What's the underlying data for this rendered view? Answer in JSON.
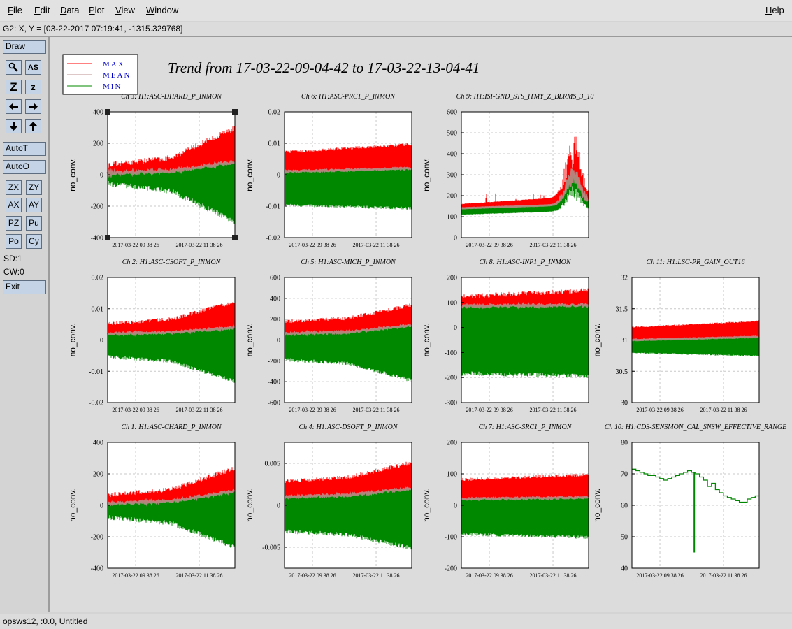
{
  "menu": {
    "items": [
      "File",
      "Edit",
      "Data",
      "Plot",
      "View",
      "Window"
    ],
    "help": "Help"
  },
  "coord_readout": "G2: X, Y = [03-22-2017 07:19:41, -1315.329768]",
  "toolbar": {
    "draw": "Draw",
    "autot": "AutoT",
    "autoo": "AutoO",
    "grid_buttons": [
      "ZX",
      "ZY",
      "AX",
      "AY",
      "PZ",
      "Pu",
      "Po",
      "Cy"
    ],
    "sd": "SD:1",
    "cw": "CW:0",
    "exit": "Exit",
    "icon_labels": {
      "text_tool": "AS",
      "zoom_big": "Z",
      "zoom_small": "z"
    }
  },
  "status": "opsws12, :0.0, Untitled",
  "plot_title": "Trend from 17-03-22-09-04-42 to 17-03-22-13-04-41",
  "legend": [
    {
      "label": "MAX",
      "color": "#ff0000"
    },
    {
      "label": "MEAN",
      "color": "#bc8f8f"
    },
    {
      "label": "MIN",
      "color": "#008800"
    }
  ],
  "colors": {
    "max": "#ff0000",
    "mean": "#bc8f8f",
    "min": "#008800",
    "legend_text": "#0000cc"
  },
  "chart_data": [
    {
      "channel": "Ch 3: H1:ASC-DHARD_P_INMON",
      "type": "line",
      "ylabel": "no_conv.",
      "ylim": [
        -400,
        400
      ],
      "yticks": [
        -400,
        -200,
        0,
        200,
        400
      ],
      "xticks": [
        "2017-03-22 09 38 26",
        "2017-03-22 11 38 26"
      ],
      "profile": "growing",
      "max_start": 55,
      "max_end": 290,
      "mean_start": 10,
      "mean_end": 80,
      "min_start": -50,
      "min_end": -290,
      "noise": 0.25
    },
    {
      "channel": "Ch 6: H1:ASC-PRC1_P_INMON",
      "type": "line",
      "ylabel": "no_conv.",
      "ylim": [
        -0.02,
        0.02
      ],
      "yticks": [
        -0.02,
        -0.01,
        0,
        0.01,
        0.02
      ],
      "xticks": [
        "2017-03-22 09 38 26",
        "2017-03-22 11 38 26"
      ],
      "profile": "flat",
      "max_start": 0.007,
      "max_end": 0.0095,
      "mean_start": 0.001,
      "mean_end": 0.002,
      "min_start": -0.0095,
      "min_end": -0.0105,
      "noise": 0.18
    },
    {
      "channel": "Ch 9: H1:ISI-GND_STS_ITMY_Z_BLRMS_3_10",
      "type": "line",
      "ylabel": "no_conv.",
      "ylim": [
        0,
        600
      ],
      "yticks": [
        0,
        100,
        200,
        300,
        400,
        500,
        600
      ],
      "xticks": [
        "2017-03-22 09 38 26",
        "2017-03-22 11 38 26"
      ],
      "profile": "blrms",
      "max_start": 160,
      "max_end": 200,
      "mean_start": 140,
      "mean_end": 160,
      "min_start": 110,
      "min_end": 130,
      "noise": 0.15
    },
    {
      "channel": "Ch 2: H1:ASC-CSOFT_P_INMON",
      "type": "line",
      "ylabel": "no_conv.",
      "ylim": [
        -0.02,
        0.02
      ],
      "yticks": [
        -0.02,
        -0.01,
        0,
        0.01,
        0.02
      ],
      "xticks": [
        "2017-03-22 09 38 26",
        "2017-03-22 11 38 26"
      ],
      "profile": "growing",
      "max_start": 0.005,
      "max_end": 0.012,
      "mean_start": 0.002,
      "mean_end": 0.004,
      "min_start": -0.005,
      "min_end": -0.013,
      "noise": 0.2
    },
    {
      "channel": "Ch 5: H1:ASC-MICH_P_INMON",
      "type": "line",
      "ylabel": "no_conv.",
      "ylim": [
        -600,
        600
      ],
      "yticks": [
        -600,
        -400,
        -200,
        0,
        200,
        400,
        600
      ],
      "xticks": [
        "2017-03-22 09 38 26",
        "2017-03-22 11 38 26"
      ],
      "profile": "growing",
      "max_start": 170,
      "max_end": 330,
      "mean_start": 60,
      "mean_end": 140,
      "min_start": -180,
      "min_end": -380,
      "noise": 0.2
    },
    {
      "channel": "Ch 8: H1:ASC-INP1_P_INMON",
      "type": "line",
      "ylabel": "no_conv.",
      "ylim": [
        -300,
        200
      ],
      "yticks": [
        -300,
        -200,
        -100,
        0,
        100,
        200
      ],
      "xticks": [
        "2017-03-22 09 38 26",
        "2017-03-22 11 38 26"
      ],
      "profile": "flat",
      "max_start": 120,
      "max_end": 145,
      "mean_start": 85,
      "mean_end": 90,
      "min_start": -180,
      "min_end": -190,
      "noise": 0.22
    },
    {
      "channel": "Ch 11: H1:LSC-PR_GAIN_OUT16",
      "type": "line",
      "ylabel": "no_conv.",
      "ylim": [
        30,
        32
      ],
      "yticks": [
        30,
        30.5,
        31,
        31.5,
        32
      ],
      "xticks": [
        "2017-03-22 09 38 26",
        "2017-03-22 11 38 26"
      ],
      "profile": "flat",
      "max_start": 31.2,
      "max_end": 31.3,
      "mean_start": 31.0,
      "mean_end": 31.05,
      "min_start": 30.8,
      "min_end": 30.75,
      "noise": 0.15
    },
    {
      "channel": "Ch 1: H1:ASC-CHARD_P_INMON",
      "type": "line",
      "ylabel": "no_conv.",
      "ylim": [
        -400,
        400
      ],
      "yticks": [
        -400,
        -200,
        0,
        200,
        400
      ],
      "xticks": [
        "2017-03-22 09 38 26",
        "2017-03-22 11 38 26"
      ],
      "profile": "growing",
      "max_start": 60,
      "max_end": 230,
      "mean_start": 10,
      "mean_end": 90,
      "min_start": -70,
      "min_end": -260,
      "noise": 0.25
    },
    {
      "channel": "Ch 4: H1:ASC-DSOFT_P_INMON",
      "type": "line",
      "ylabel": "no_conv.",
      "ylim": [
        -0.0075,
        0.0075
      ],
      "yticks": [
        -0.005,
        0,
        0.005
      ],
      "ytick_labels": [
        "-0.005",
        "0",
        "0.005"
      ],
      "xticks": [
        "2017-03-22 09 38 26",
        "2017-03-22 11 38 26"
      ],
      "profile": "growing",
      "max_start": 0.0028,
      "max_end": 0.005,
      "mean_start": 0.001,
      "mean_end": 0.002,
      "min_start": -0.003,
      "min_end": -0.005,
      "noise": 0.2
    },
    {
      "channel": "Ch 7: H1:ASC-SRC1_P_INMON",
      "type": "line",
      "ylabel": "no_conv.",
      "ylim": [
        -200,
        200
      ],
      "yticks": [
        -200,
        -100,
        0,
        100,
        200
      ],
      "xticks": [
        "2017-03-22 09 38 26",
        "2017-03-22 11 38 26"
      ],
      "profile": "flat",
      "max_start": 80,
      "max_end": 95,
      "mean_start": 20,
      "mean_end": 25,
      "min_start": -90,
      "min_end": -100,
      "noise": 0.2
    },
    {
      "channel": "Ch 10: H1:CDS-SENSMON_CAL_SNSW_EFFECTIVE_RANGE",
      "type": "line",
      "ylabel": "no_conv.",
      "ylim": [
        40,
        80
      ],
      "yticks": [
        40,
        50,
        60,
        70,
        80
      ],
      "xticks": [
        "2017-03-22 09 38 26",
        "2017-03-22 11 38 26"
      ],
      "profile": "step",
      "series_min": [
        71.5,
        71,
        70.5,
        70,
        69.5,
        69.5,
        69,
        68.5,
        68,
        68.5,
        69,
        69.5,
        70,
        70.5,
        71,
        70.5,
        70,
        69,
        68,
        66,
        67,
        65,
        64,
        63,
        62.5,
        62,
        61.5,
        61,
        61,
        62,
        62.5,
        63
      ],
      "dip_at": 0.49,
      "dip_value": 45
    }
  ]
}
